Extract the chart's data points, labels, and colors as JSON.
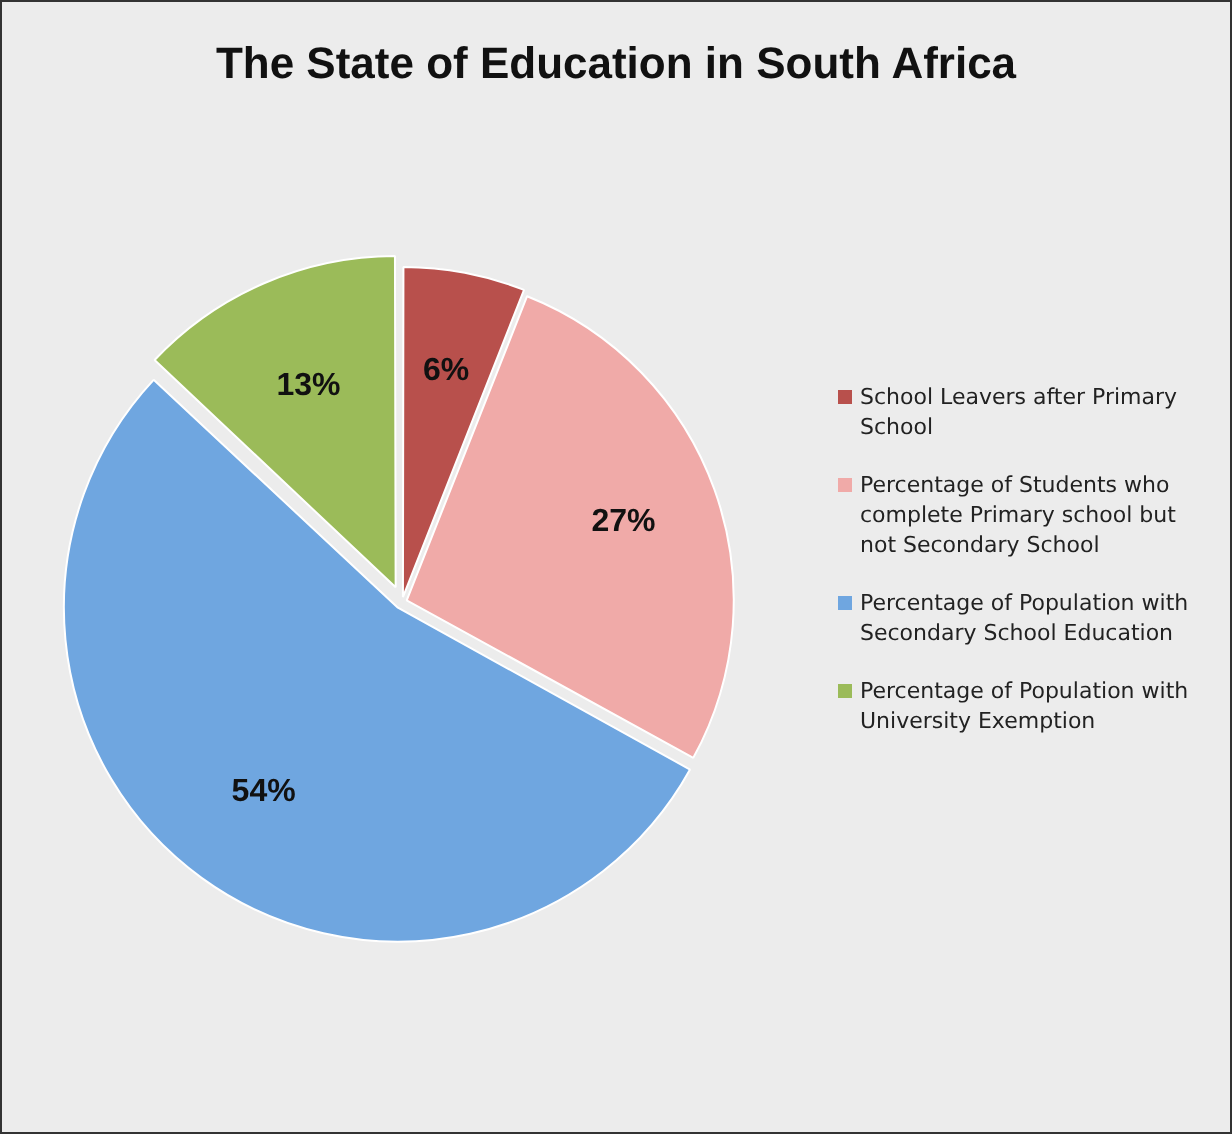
{
  "chart_data": {
    "type": "pie",
    "title": "The State of Education in South Africa",
    "categories": [
      "School Leavers after Primary School",
      "Percentage of Students who complete Primary school but not Secondary School",
      "Percentage of Population with Secondary School Education",
      "Percentage of Population with University Exemption"
    ],
    "values": [
      6,
      27,
      54,
      13
    ],
    "colors": [
      "#b8504c",
      "#f0aaa8",
      "#6fa6e0",
      "#9bbb59"
    ],
    "value_labels": [
      "6%",
      "27%",
      "54%",
      "13%"
    ],
    "legend": "right"
  }
}
